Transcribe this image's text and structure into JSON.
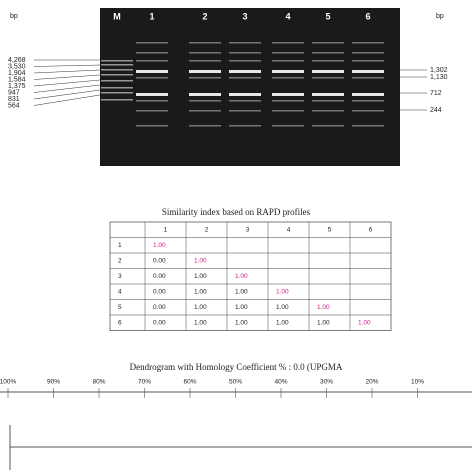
{
  "gel": {
    "unit_left": "bp",
    "unit_right": "bp",
    "lanes": [
      "M",
      "1",
      "2",
      "3",
      "4",
      "5",
      "6"
    ],
    "markers_left": [
      "4,268",
      "3,530",
      "1,904",
      "1,584",
      "1,375",
      "947",
      "831",
      "564"
    ],
    "markers_right": [
      "1,302",
      "1,130",
      "712",
      "244"
    ]
  },
  "table": {
    "title": "Similarity index based on RAPD profiles",
    "header": [
      "1",
      "2",
      "3",
      "4",
      "5",
      "6"
    ],
    "rows": [
      [
        "1",
        "1.00"
      ],
      [
        "2",
        "0.00",
        "1.00"
      ],
      [
        "3",
        "0.00",
        "1.00",
        "1.00"
      ],
      [
        "4",
        "0.00",
        "1.00",
        "1.00",
        "1.00"
      ],
      [
        "5",
        "0.00",
        "1.00",
        "1.00",
        "1.00",
        "1.00"
      ],
      [
        "6",
        "0.00",
        "1.00",
        "1.00",
        "1.00",
        "1.00",
        "1.00"
      ]
    ]
  },
  "dendrogram": {
    "title": "Dendrogram with Homology Coefficient % : 0.0 (UPGMA",
    "scale": [
      "100%",
      "90%",
      "80%",
      "70%",
      "60%",
      "50%",
      "40%",
      "30%",
      "20%",
      "10%"
    ]
  }
}
